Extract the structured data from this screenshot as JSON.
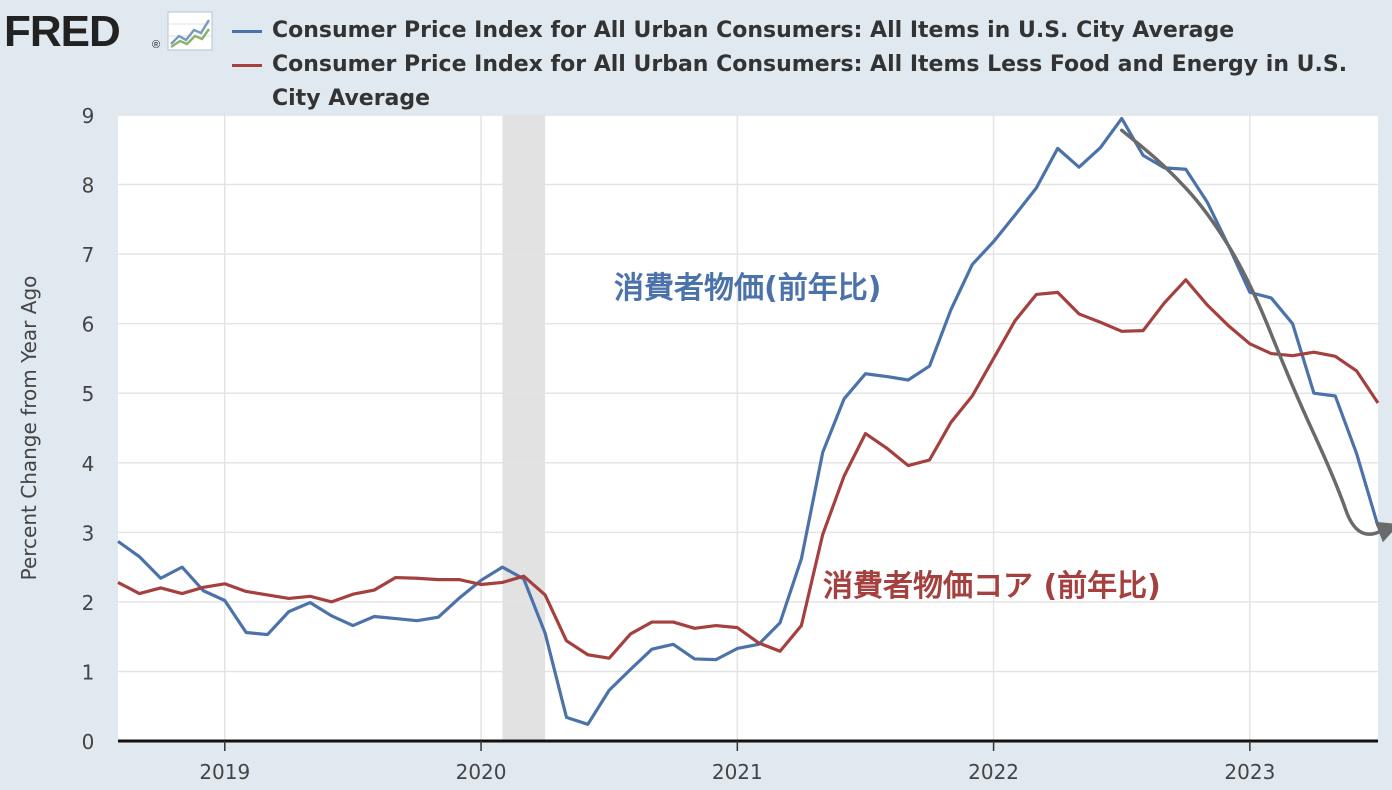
{
  "logo": {
    "text": "FRED",
    "mark": "®",
    "icon": "fred-graph-icon"
  },
  "legend": [
    {
      "label": "Consumer Price Index for All Urban Consumers: All Items in U.S. City Average",
      "color": "#4c72aa"
    },
    {
      "label": "Consumer Price Index for All Urban Consumers: All Items Less Food and Energy in U.S. City Average",
      "color": "#a4403e"
    }
  ],
  "chart_data": {
    "type": "line",
    "ylabel": "Percent Change from Year Ago",
    "ylim": [
      0,
      9
    ],
    "yticks": [
      "0",
      "1",
      "2",
      "3",
      "4",
      "5",
      "6",
      "7",
      "8",
      "9"
    ],
    "xlim": [
      "2018-08",
      "2023-07"
    ],
    "xticks": [
      {
        "label": "2019",
        "date": "2019-01"
      },
      {
        "label": "2020",
        "date": "2020-01"
      },
      {
        "label": "2021",
        "date": "2021-01"
      },
      {
        "label": "2022",
        "date": "2022-01"
      },
      {
        "label": "2023",
        "date": "2023-01"
      }
    ],
    "grid": true,
    "recession": {
      "start": "2020-02",
      "end": "2020-04",
      "color": "#e2e2e2"
    },
    "x": [
      "2018-08",
      "2018-09",
      "2018-10",
      "2018-11",
      "2018-12",
      "2019-01",
      "2019-02",
      "2019-03",
      "2019-04",
      "2019-05",
      "2019-06",
      "2019-07",
      "2019-08",
      "2019-09",
      "2019-10",
      "2019-11",
      "2019-12",
      "2020-01",
      "2020-02",
      "2020-03",
      "2020-04",
      "2020-05",
      "2020-06",
      "2020-07",
      "2020-08",
      "2020-09",
      "2020-10",
      "2020-11",
      "2020-12",
      "2021-01",
      "2021-02",
      "2021-03",
      "2021-04",
      "2021-05",
      "2021-06",
      "2021-07",
      "2021-08",
      "2021-09",
      "2021-10",
      "2021-11",
      "2021-12",
      "2022-01",
      "2022-02",
      "2022-03",
      "2022-04",
      "2022-05",
      "2022-06",
      "2022-07",
      "2022-08",
      "2022-09",
      "2022-10",
      "2022-11",
      "2022-12",
      "2023-01",
      "2023-02",
      "2023-03",
      "2023-04",
      "2023-05",
      "2023-06",
      "2023-07"
    ],
    "series": [
      {
        "name": "Consumer Price Index for All Urban Consumers: All Items in U.S. City Average",
        "color": "#4c72aa",
        "values": [
          2.87,
          2.65,
          2.34,
          2.5,
          2.16,
          2.02,
          1.56,
          1.53,
          1.86,
          1.99,
          1.8,
          1.66,
          1.79,
          1.76,
          1.73,
          1.78,
          2.06,
          2.31,
          2.5,
          2.33,
          1.55,
          0.34,
          0.24,
          0.73,
          1.03,
          1.32,
          1.39,
          1.18,
          1.17,
          1.33,
          1.39,
          1.7,
          2.62,
          4.15,
          4.92,
          5.28,
          5.24,
          5.19,
          5.39,
          6.2,
          6.85,
          7.18,
          7.56,
          7.95,
          8.52,
          8.25,
          8.53,
          8.95,
          8.42,
          8.24,
          8.22,
          7.75,
          7.12,
          6.45,
          6.37,
          6.0,
          5.0,
          4.96,
          4.13,
          3.09
        ]
      },
      {
        "name": "Consumer Price Index for All Urban Consumers: All Items Less Food and Energy in U.S. City Average",
        "color": "#a4403e",
        "values": [
          2.28,
          2.12,
          2.2,
          2.12,
          2.21,
          2.26,
          2.15,
          2.1,
          2.05,
          2.08,
          2.0,
          2.11,
          2.17,
          2.35,
          2.34,
          2.32,
          2.32,
          2.25,
          2.28,
          2.37,
          2.1,
          1.44,
          1.24,
          1.19,
          1.54,
          1.71,
          1.71,
          1.62,
          1.66,
          1.63,
          1.41,
          1.29,
          1.66,
          2.97,
          3.81,
          4.42,
          4.21,
          3.96,
          4.04,
          4.58,
          4.96,
          5.5,
          6.04,
          6.42,
          6.45,
          6.14,
          6.02,
          5.89,
          5.9,
          6.3,
          6.63,
          6.27,
          5.97,
          5.71,
          5.57,
          5.54,
          5.59,
          5.53,
          5.32,
          4.86
        ]
      }
    ],
    "annotations": [
      {
        "text": "消費者物価(前年比)",
        "color": "#4c72aa"
      },
      {
        "text": "消費者物価コア (前年比)",
        "color": "#a4403e"
      }
    ],
    "trend_arrow": {
      "color": "#6a6a6a",
      "points": [
        [
          "2022-07",
          8.78
        ],
        [
          "2022-09",
          8.28
        ],
        [
          "2022-11",
          7.62
        ],
        [
          "2023-01",
          6.62
        ],
        [
          "2023-03",
          5.08
        ],
        [
          "2023-05",
          3.75
        ],
        [
          "2023-06",
          2.88
        ],
        [
          "2023-08",
          3.12
        ]
      ]
    }
  }
}
